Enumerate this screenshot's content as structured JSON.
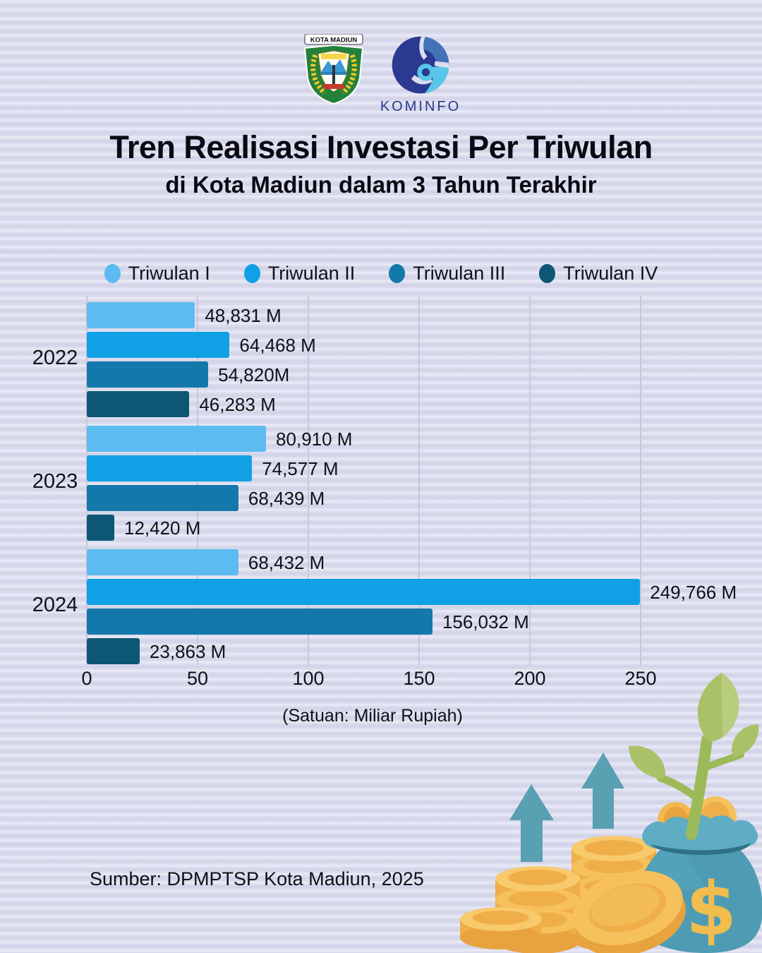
{
  "header": {
    "kota_madiun_label": "KOTA MADIUN",
    "kominfo_label": "KOMINFO"
  },
  "title": {
    "line1": "Tren Realisasi Investasi Per Triwulan",
    "line2": "di Kota Madiun dalam 3 Tahun Terakhir"
  },
  "legend": [
    {
      "label": "Triwulan I",
      "color": "#5cbbf0"
    },
    {
      "label": "Triwulan II",
      "color": "#0fa0e6"
    },
    {
      "label": "Triwulan III",
      "color": "#1478ab"
    },
    {
      "label": "Triwulan IV",
      "color": "#0d5674"
    }
  ],
  "chart_data": {
    "type": "bar",
    "orientation": "horizontal",
    "title": "Tren Realisasi Investasi Per Triwulan di Kota Madiun dalam 3 Tahun Terakhir",
    "unit": "Miliar Rupiah",
    "caption": "(Satuan: Miliar Rupiah)",
    "categories": [
      "2022",
      "2023",
      "2024"
    ],
    "series_names": [
      "Triwulan I",
      "Triwulan II",
      "Triwulan III",
      "Triwulan IV"
    ],
    "series_colors": [
      "#5cbbf0",
      "#0fa0e6",
      "#1478ab",
      "#0d5674"
    ],
    "xlim": [
      0,
      250
    ],
    "x_ticks": [
      0,
      50,
      100,
      150,
      200,
      250
    ],
    "grid": true,
    "groups": [
      {
        "year": "2022",
        "values": [
          48.831,
          64.468,
          54.82,
          46.283
        ],
        "labels": [
          "48,831 M",
          "64,468 M",
          "54,820M",
          "46,283 M"
        ]
      },
      {
        "year": "2023",
        "values": [
          80.91,
          74.577,
          68.439,
          12.42
        ],
        "labels": [
          "80,910 M",
          "74,577 M",
          "68,439 M",
          "12,420 M"
        ]
      },
      {
        "year": "2024",
        "values": [
          68.432,
          249.766,
          156.032,
          23.863
        ],
        "labels": [
          "68,432 M",
          "249,766 M",
          "156,032 M",
          "23,863 M"
        ]
      }
    ]
  },
  "footer": {
    "source": "Sumber: DPMPTSP Kota Madiun, 2025"
  },
  "colors": {
    "background": "#dbdcee",
    "gridline": "#c7c8da",
    "arrow_teal": "#58a0b2",
    "coin_gold": "#f6c05c",
    "bag_teal": "#4d9cb4",
    "leaf_green": "#a9c268"
  }
}
